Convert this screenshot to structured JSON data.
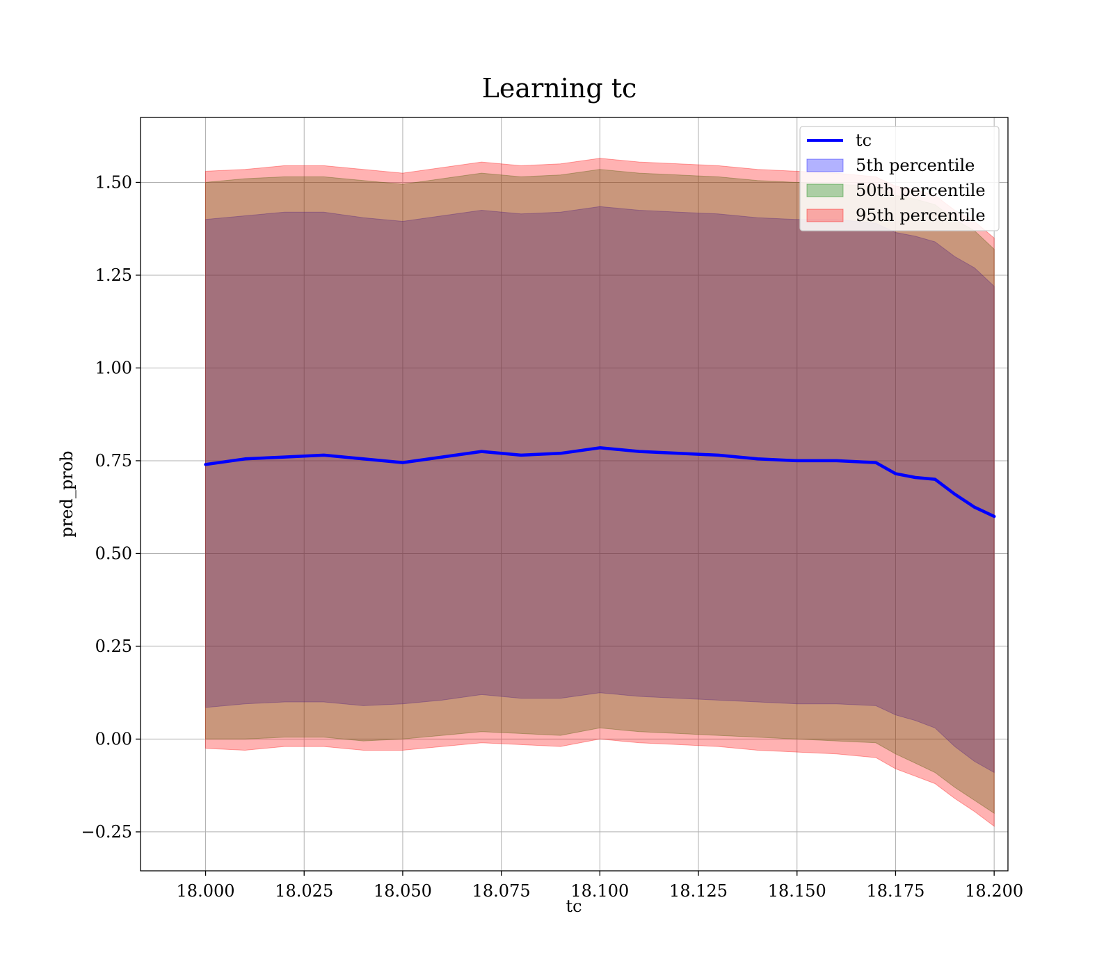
{
  "chart_data": {
    "type": "area",
    "title": "Learning tc",
    "xlabel": "tc",
    "ylabel": "pred_prob",
    "xlim": [
      17.9835,
      18.2035
    ],
    "ylim": [
      -0.355,
      1.675
    ],
    "x_ticks": [
      "18.000",
      "18.025",
      "18.050",
      "18.075",
      "18.100",
      "18.125",
      "18.150",
      "18.175",
      "18.200"
    ],
    "x_tick_values": [
      18.0,
      18.025,
      18.05,
      18.075,
      18.1,
      18.125,
      18.15,
      18.175,
      18.2
    ],
    "y_ticks": [
      "−0.25",
      "0.00",
      "0.25",
      "0.50",
      "0.75",
      "1.00",
      "1.25",
      "1.50"
    ],
    "y_tick_values": [
      -0.25,
      0.0,
      0.25,
      0.5,
      0.75,
      1.0,
      1.25,
      1.5
    ],
    "grid": true,
    "legend": {
      "placement": "upper-right",
      "entries": [
        {
          "label": "tc",
          "kind": "line",
          "color": "#0000ff"
        },
        {
          "label": "5th percentile",
          "kind": "patch",
          "color": "#0000ff"
        },
        {
          "label": "50th percentile",
          "kind": "patch",
          "color": "#008000"
        },
        {
          "label": "95th percentile",
          "kind": "patch",
          "color": "#ff0000"
        }
      ]
    },
    "x": [
      18.0,
      18.01,
      18.02,
      18.03,
      18.04,
      18.05,
      18.06,
      18.07,
      18.08,
      18.09,
      18.1,
      18.11,
      18.12,
      18.13,
      18.14,
      18.15,
      18.16,
      18.17,
      18.175,
      18.18,
      18.185,
      18.19,
      18.195,
      18.2
    ],
    "series": [
      {
        "name": "tc",
        "type": "line",
        "color": "#0000ff",
        "values": [
          0.74,
          0.755,
          0.76,
          0.765,
          0.755,
          0.745,
          0.76,
          0.775,
          0.765,
          0.77,
          0.785,
          0.775,
          0.77,
          0.765,
          0.755,
          0.75,
          0.75,
          0.745,
          0.715,
          0.705,
          0.7,
          0.66,
          0.625,
          0.6
        ]
      },
      {
        "name": "5th percentile",
        "type": "band",
        "color": "#0000ff",
        "lower": [
          0.085,
          0.095,
          0.1,
          0.1,
          0.09,
          0.095,
          0.105,
          0.12,
          0.11,
          0.11,
          0.125,
          0.115,
          0.11,
          0.105,
          0.1,
          0.095,
          0.095,
          0.09,
          0.065,
          0.05,
          0.03,
          -0.02,
          -0.06,
          -0.09
        ],
        "upper": [
          1.4,
          1.41,
          1.42,
          1.42,
          1.405,
          1.395,
          1.41,
          1.425,
          1.415,
          1.42,
          1.435,
          1.425,
          1.42,
          1.415,
          1.405,
          1.4,
          1.4,
          1.39,
          1.365,
          1.355,
          1.34,
          1.3,
          1.27,
          1.22
        ]
      },
      {
        "name": "50th percentile",
        "type": "band",
        "color": "#008000",
        "lower": [
          0.0,
          0.0,
          0.005,
          0.005,
          -0.005,
          0.0,
          0.01,
          0.02,
          0.015,
          0.01,
          0.03,
          0.02,
          0.015,
          0.01,
          0.005,
          0.0,
          -0.005,
          -0.01,
          -0.04,
          -0.065,
          -0.09,
          -0.13,
          -0.165,
          -0.2
        ],
        "upper": [
          1.5,
          1.51,
          1.515,
          1.515,
          1.505,
          1.495,
          1.51,
          1.525,
          1.515,
          1.52,
          1.535,
          1.525,
          1.52,
          1.515,
          1.505,
          1.5,
          1.495,
          1.49,
          1.465,
          1.455,
          1.44,
          1.4,
          1.37,
          1.32
        ]
      },
      {
        "name": "95th percentile",
        "type": "band",
        "color": "#ff0000",
        "lower": [
          -0.025,
          -0.03,
          -0.02,
          -0.02,
          -0.03,
          -0.03,
          -0.02,
          -0.01,
          -0.015,
          -0.02,
          0.0,
          -0.01,
          -0.015,
          -0.02,
          -0.03,
          -0.035,
          -0.04,
          -0.05,
          -0.08,
          -0.1,
          -0.12,
          -0.16,
          -0.195,
          -0.235
        ],
        "upper": [
          1.53,
          1.535,
          1.545,
          1.545,
          1.535,
          1.525,
          1.54,
          1.555,
          1.545,
          1.55,
          1.565,
          1.555,
          1.55,
          1.545,
          1.535,
          1.53,
          1.525,
          1.515,
          1.49,
          1.48,
          1.465,
          1.425,
          1.395,
          1.35
        ]
      }
    ]
  }
}
